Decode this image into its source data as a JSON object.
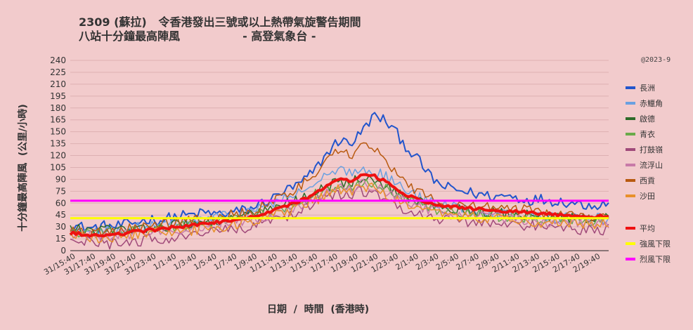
{
  "title_line1": "2309 (蘇拉)   令香港發出三號或以上熱帶氣旋警告期間",
  "title_line2": "八站十分鐘最高陣風                - 高登氣象台 -",
  "copyright": "@2023-9",
  "chart_data": {
    "type": "line",
    "xlabel": "日期  /  時間  (香港時)",
    "ylabel": "十分鐘最高陣風  (公里/小時)",
    "ylim": [
      0,
      240
    ],
    "yticks": [
      0,
      15,
      30,
      45,
      60,
      75,
      90,
      105,
      120,
      135,
      150,
      165,
      180,
      195,
      210,
      225,
      240
    ],
    "xtick_labels": [
      "31/15:40",
      "31/17:40",
      "31/19:40",
      "31/21:40",
      "31/23:40",
      "1/1:40",
      "1/3:40",
      "1/5:40",
      "1/7:40",
      "1/9:40",
      "1/11:40",
      "1/13:40",
      "1/15:40",
      "1/17:40",
      "1/19:40",
      "1/21:40",
      "1/23:40",
      "2/1:40",
      "2/3:40",
      "2/5:40",
      "2/7:40",
      "2/9:40",
      "2/11:40",
      "2/13:40",
      "2/15:40",
      "2/17:40",
      "2/19:40"
    ],
    "grid": true,
    "legend_position": "right",
    "x_description": "10-minute intervals from 31/15:40 to 2/20:10, interpolated between hourly anchors",
    "series": [
      {
        "name": "長洲",
        "color": "#2255cc",
        "width": 2,
        "values": [
          32,
          30,
          28,
          31,
          30,
          33,
          36,
          40,
          38,
          42,
          44,
          45,
          48,
          46,
          47,
          50,
          52,
          60,
          65,
          75,
          80,
          90,
          105,
          125,
          140,
          135,
          150,
          170,
          165,
          150,
          130,
          115,
          95,
          82,
          78,
          75,
          72,
          70,
          68,
          70,
          66,
          64,
          65,
          63,
          62,
          60,
          58,
          58,
          60
        ]
      },
      {
        "name": "赤鱲角",
        "color": "#6aa0e0",
        "width": 1.5,
        "values": [
          26,
          24,
          22,
          24,
          25,
          27,
          29,
          30,
          32,
          33,
          35,
          37,
          40,
          42,
          44,
          46,
          48,
          55,
          60,
          65,
          70,
          78,
          85,
          95,
          100,
          98,
          105,
          100,
          95,
          85,
          75,
          68,
          62,
          58,
          55,
          55,
          52,
          50,
          48,
          47,
          45,
          44,
          43,
          42,
          42,
          41,
          40,
          40,
          40
        ]
      },
      {
        "name": "啟德",
        "color": "#2e6b2a",
        "width": 1.5,
        "values": [
          28,
          26,
          25,
          26,
          26,
          27,
          28,
          30,
          30,
          32,
          33,
          34,
          36,
          38,
          40,
          42,
          44,
          48,
          52,
          58,
          62,
          68,
          75,
          82,
          88,
          85,
          92,
          88,
          82,
          75,
          68,
          62,
          58,
          55,
          52,
          52,
          50,
          48,
          47,
          46,
          45,
          44,
          43,
          42,
          41,
          40,
          40,
          39,
          40
        ]
      },
      {
        "name": "青衣",
        "color": "#6aaa4a",
        "width": 1.5,
        "values": [
          24,
          22,
          21,
          22,
          23,
          24,
          26,
          27,
          28,
          30,
          31,
          32,
          34,
          36,
          38,
          40,
          42,
          46,
          50,
          55,
          60,
          65,
          72,
          78,
          84,
          80,
          88,
          85,
          78,
          70,
          64,
          58,
          54,
          51,
          49,
          48,
          46,
          45,
          44,
          43,
          42,
          41,
          40,
          40,
          39,
          38,
          38,
          37,
          38
        ]
      },
      {
        "name": "打鼓嶺",
        "color": "#a04a7a",
        "width": 1.5,
        "values": [
          14,
          12,
          10,
          9,
          8,
          10,
          12,
          14,
          15,
          16,
          18,
          20,
          22,
          24,
          26,
          28,
          30,
          34,
          38,
          42,
          48,
          54,
          60,
          66,
          72,
          70,
          76,
          72,
          66,
          58,
          52,
          46,
          42,
          40,
          38,
          38,
          36,
          35,
          34,
          33,
          32,
          32,
          30,
          30,
          28,
          28,
          26,
          26,
          27
        ]
      },
      {
        "name": "流浮山",
        "color": "#c87aa8",
        "width": 1.5,
        "values": [
          22,
          20,
          18,
          18,
          19,
          20,
          22,
          23,
          24,
          26,
          27,
          28,
          30,
          32,
          34,
          36,
          38,
          42,
          46,
          50,
          55,
          60,
          68,
          75,
          82,
          78,
          86,
          82,
          76,
          68,
          62,
          56,
          52,
          50,
          48,
          47,
          45,
          44,
          42,
          41,
          40,
          39,
          38,
          37,
          36,
          35,
          34,
          34,
          35
        ]
      },
      {
        "name": "西貢",
        "color": "#b85a10",
        "width": 1.5,
        "values": [
          27,
          25,
          24,
          25,
          26,
          27,
          28,
          30,
          32,
          34,
          36,
          38,
          40,
          42,
          44,
          46,
          48,
          55,
          62,
          70,
          78,
          88,
          100,
          115,
          128,
          120,
          135,
          128,
          115,
          100,
          85,
          75,
          68,
          62,
          58,
          57,
          56,
          55,
          54,
          55,
          52,
          50,
          48,
          47,
          46,
          45,
          44,
          44,
          45
        ]
      },
      {
        "name": "沙田",
        "color": "#e8902a",
        "width": 1.5,
        "values": [
          20,
          18,
          16,
          16,
          17,
          18,
          20,
          22,
          23,
          24,
          25,
          26,
          28,
          30,
          32,
          34,
          36,
          40,
          44,
          48,
          52,
          58,
          65,
          72,
          78,
          75,
          82,
          78,
          72,
          64,
          58,
          52,
          48,
          46,
          44,
          44,
          42,
          41,
          40,
          39,
          38,
          37,
          36,
          36,
          35,
          34,
          34,
          33,
          34
        ]
      },
      {
        "name": "平均",
        "color": "#ee1111",
        "width": 4,
        "values": [
          22,
          21,
          19,
          20,
          21,
          22,
          24,
          26,
          27,
          29,
          30,
          32,
          34,
          36,
          38,
          40,
          42,
          46,
          50,
          55,
          60,
          66,
          74,
          82,
          90,
          88,
          97,
          95,
          88,
          78,
          70,
          64,
          60,
          57,
          55,
          54,
          53,
          52,
          51,
          50,
          49,
          48,
          47,
          46,
          45,
          44,
          43,
          43,
          44
        ]
      }
    ],
    "reference_lines": [
      {
        "name": "強風下限",
        "color": "#ffff00",
        "value": 41
      },
      {
        "name": "烈風下限",
        "color": "#ff00ff",
        "value": 63
      }
    ]
  }
}
